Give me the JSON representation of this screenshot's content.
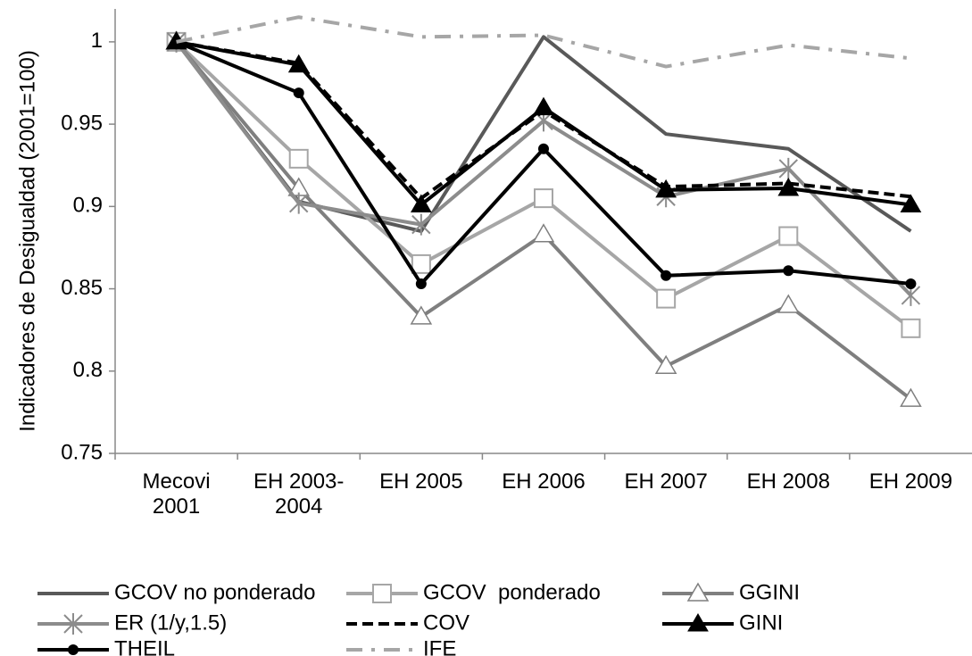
{
  "chart_data": {
    "type": "line",
    "y_label": "Indicadores de Desigualdad (2001=100)",
    "categories": [
      "Mecovi 2001",
      "EH 2003-2004",
      "EH 2005",
      "EH 2006",
      "EH 2007",
      "EH 2008",
      "EH 2009"
    ],
    "ylim": [
      0.75,
      1.02
    ],
    "yticks": [
      0.75,
      0.8,
      0.85,
      0.9,
      0.95,
      1
    ],
    "grid": false,
    "legend": "bottom",
    "series": [
      {
        "name": "GCOV no ponderado",
        "color": "#595959",
        "dash": "solid",
        "marker": "none",
        "values": [
          1,
          0.903,
          0.885,
          1.003,
          0.944,
          0.935,
          0.885
        ]
      },
      {
        "name": "GCOV  ponderado",
        "color": "#a6a6a6",
        "dash": "solid",
        "marker": "square",
        "values": [
          1,
          0.929,
          0.865,
          0.905,
          0.844,
          0.882,
          0.826
        ]
      },
      {
        "name": "GGINI",
        "color": "#7f7f7f",
        "dash": "solid",
        "marker": "triangle-open",
        "values": [
          1,
          0.911,
          0.833,
          0.883,
          0.803,
          0.84,
          0.783
        ]
      },
      {
        "name": "ER (1/y,1.5)",
        "color": "#8c8c8c",
        "dash": "solid",
        "marker": "star",
        "values": [
          1,
          0.902,
          0.889,
          0.952,
          0.906,
          0.923,
          0.846
        ]
      },
      {
        "name": "COV",
        "color": "#000000",
        "dash": "dash",
        "marker": "none",
        "values": [
          1,
          0.987,
          0.905,
          0.958,
          0.912,
          0.914,
          0.906
        ]
      },
      {
        "name": "GINI",
        "color": "#000000",
        "dash": "solid",
        "marker": "triangle",
        "values": [
          1,
          0.986,
          0.901,
          0.96,
          0.91,
          0.911,
          0.901
        ]
      },
      {
        "name": "THEIL",
        "color": "#000000",
        "dash": "solid",
        "marker": "circle",
        "values": [
          1,
          0.969,
          0.853,
          0.935,
          0.858,
          0.861,
          0.853
        ]
      },
      {
        "name": "IFE",
        "color": "#a6a6a6",
        "dash": "dashdot",
        "marker": "none",
        "values": [
          1,
          1.015,
          1.003,
          1.004,
          0.985,
          0.998,
          0.99
        ]
      }
    ]
  }
}
